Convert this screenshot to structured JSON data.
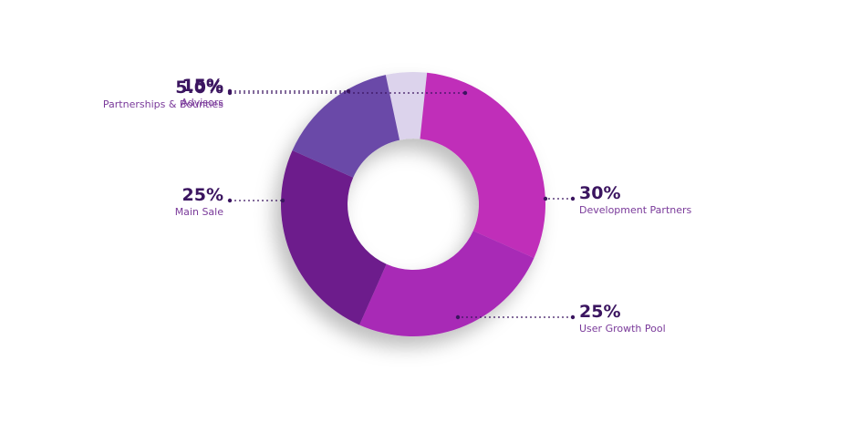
{
  "chart_data": {
    "type": "pie",
    "categories": [
      "Partnerships & Bounties",
      "Development Partners",
      "User Growth Pool",
      "Main Sale",
      "Advisors"
    ],
    "values": [
      5.0,
      30,
      25,
      25,
      15
    ],
    "value_labels": [
      "5.0%",
      "30%",
      "25%",
      "25%",
      "15%"
    ],
    "colors": [
      "#dcd3ec",
      "#c02db9",
      "#a82ab6",
      "#6d1c8c",
      "#6a4aa8"
    ]
  }
}
